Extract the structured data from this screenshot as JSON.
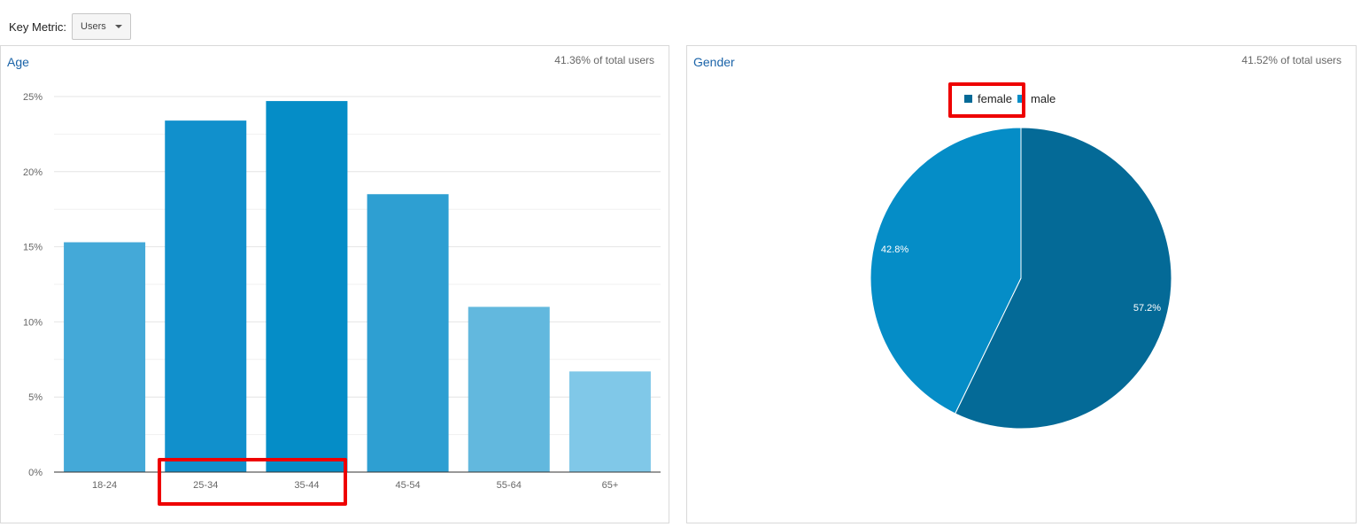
{
  "key_metric": {
    "label": "Key Metric:",
    "selected": "Users"
  },
  "age_panel": {
    "title": "Age",
    "note": "41.36% of total users"
  },
  "gender_panel": {
    "title": "Gender",
    "note": "41.52% of total users"
  },
  "chart_data": [
    {
      "type": "bar",
      "title": "Age",
      "categories": [
        "18-24",
        "25-34",
        "35-44",
        "45-54",
        "55-64",
        "65+"
      ],
      "values": [
        15.3,
        23.4,
        24.7,
        18.5,
        11.0,
        6.7
      ],
      "y_ticks": [
        "0%",
        "5%",
        "10%",
        "15%",
        "20%",
        "25%"
      ],
      "ylim": [
        0,
        25
      ],
      "grid": true,
      "colors": [
        "#44a9d8",
        "#1190cc",
        "#058dc7",
        "#2e9fd2",
        "#62b8de",
        "#80c8e8"
      ]
    },
    {
      "type": "pie",
      "title": "Gender",
      "legend_position": "top-center",
      "slices": [
        {
          "name": "female",
          "value": 57.2,
          "label": "57.2%",
          "color": "#046a97"
        },
        {
          "name": "male",
          "value": 42.8,
          "label": "42.8%",
          "color": "#058dc7"
        }
      ]
    }
  ]
}
